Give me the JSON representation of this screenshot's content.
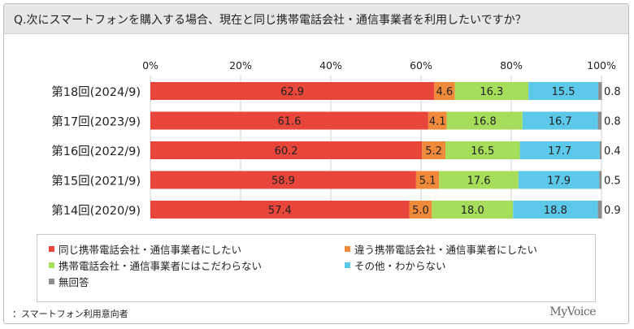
{
  "title": "Q.次にスマートフォンを購入する場合、現在と同じ携帯電話会社・通信事業者を利用したいですか？",
  "footnote": "：スマートフォン利用意向者",
  "brand": "MyVoice",
  "chart_data": {
    "type": "bar",
    "orientation": "horizontal",
    "stacked": true,
    "percent_stacked": true,
    "categories": [
      "第18回(2024/9)",
      "第17回(2023/9)",
      "第16回(2022/9)",
      "第15回(2021/9)",
      "第14回(2020/9)"
    ],
    "x_ticks": [
      "0%",
      "20%",
      "40%",
      "60%",
      "80%",
      "100%"
    ],
    "xlim": [
      0,
      100
    ],
    "grid": true,
    "legend_position": "bottom",
    "series": [
      {
        "name": "同じ携帯電話会社・通信事業者にしたい",
        "color": "#e8463a",
        "values": [
          62.9,
          61.6,
          60.2,
          58.9,
          57.4
        ]
      },
      {
        "name": "違う携帯電話会社・通信事業者にしたい",
        "color": "#f08a3a",
        "values": [
          4.6,
          4.1,
          5.2,
          5.1,
          5.0
        ]
      },
      {
        "name": "携帯電話会社・通信事業者にはこだわらない",
        "color": "#a6dd5a",
        "values": [
          16.3,
          16.8,
          16.5,
          17.6,
          18.0
        ]
      },
      {
        "name": "その他・わからない",
        "color": "#5cc9ea",
        "values": [
          15.5,
          16.7,
          17.7,
          17.9,
          18.8
        ]
      },
      {
        "name": "無回答",
        "color": "#8c8c8c",
        "values": [
          0.8,
          0.8,
          0.4,
          0.5,
          0.9
        ]
      }
    ]
  }
}
